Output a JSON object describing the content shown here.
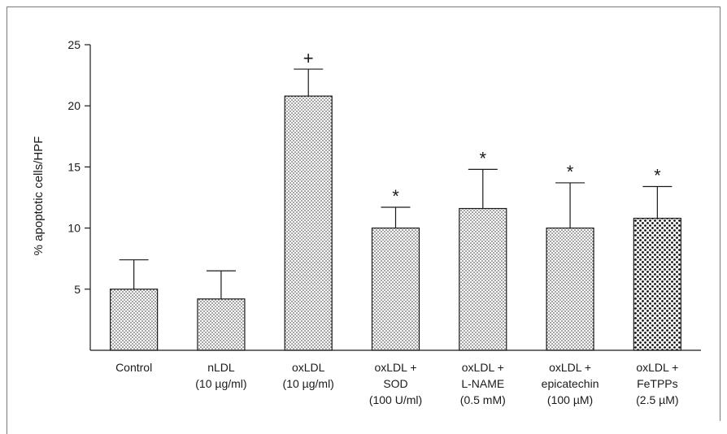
{
  "chart_data": {
    "type": "bar",
    "title": "",
    "xlabel": "",
    "ylabel": "% apoptotic cells/HPF",
    "ylim": [
      0,
      25
    ],
    "yticks": [
      5,
      10,
      15,
      20,
      25
    ],
    "grid": false,
    "categories": [
      {
        "lines": [
          "Control"
        ]
      },
      {
        "lines": [
          "nLDL",
          "(10 µg/ml)"
        ]
      },
      {
        "lines": [
          "oxLDL",
          "(10 µg/ml)"
        ]
      },
      {
        "lines": [
          "oxLDL +",
          "SOD",
          "(100 U/ml)"
        ]
      },
      {
        "lines": [
          "oxLDL +",
          "L-NAME",
          "(0.5 mM)"
        ]
      },
      {
        "lines": [
          "oxLDL +",
          "epicatechin",
          "(100 µM)"
        ]
      },
      {
        "lines": [
          "oxLDL +",
          "FeTPPs",
          "(2.5 µM)"
        ]
      }
    ],
    "values": [
      5.0,
      4.2,
      20.8,
      10.0,
      11.6,
      10.0,
      10.8
    ],
    "errors": [
      2.4,
      2.3,
      2.2,
      1.7,
      3.2,
      3.7,
      2.6
    ],
    "annotations": [
      "",
      "",
      "+",
      "*",
      "*",
      "*",
      "*"
    ],
    "patterns": [
      "fine",
      "fine",
      "fine",
      "fine",
      "fine",
      "fine",
      "coarse"
    ],
    "colors": {
      "axis": "#1a1a1a",
      "bar_fill": "#ffffff",
      "dot": "#1a1a1a",
      "frame": "#7a7a7a"
    }
  }
}
